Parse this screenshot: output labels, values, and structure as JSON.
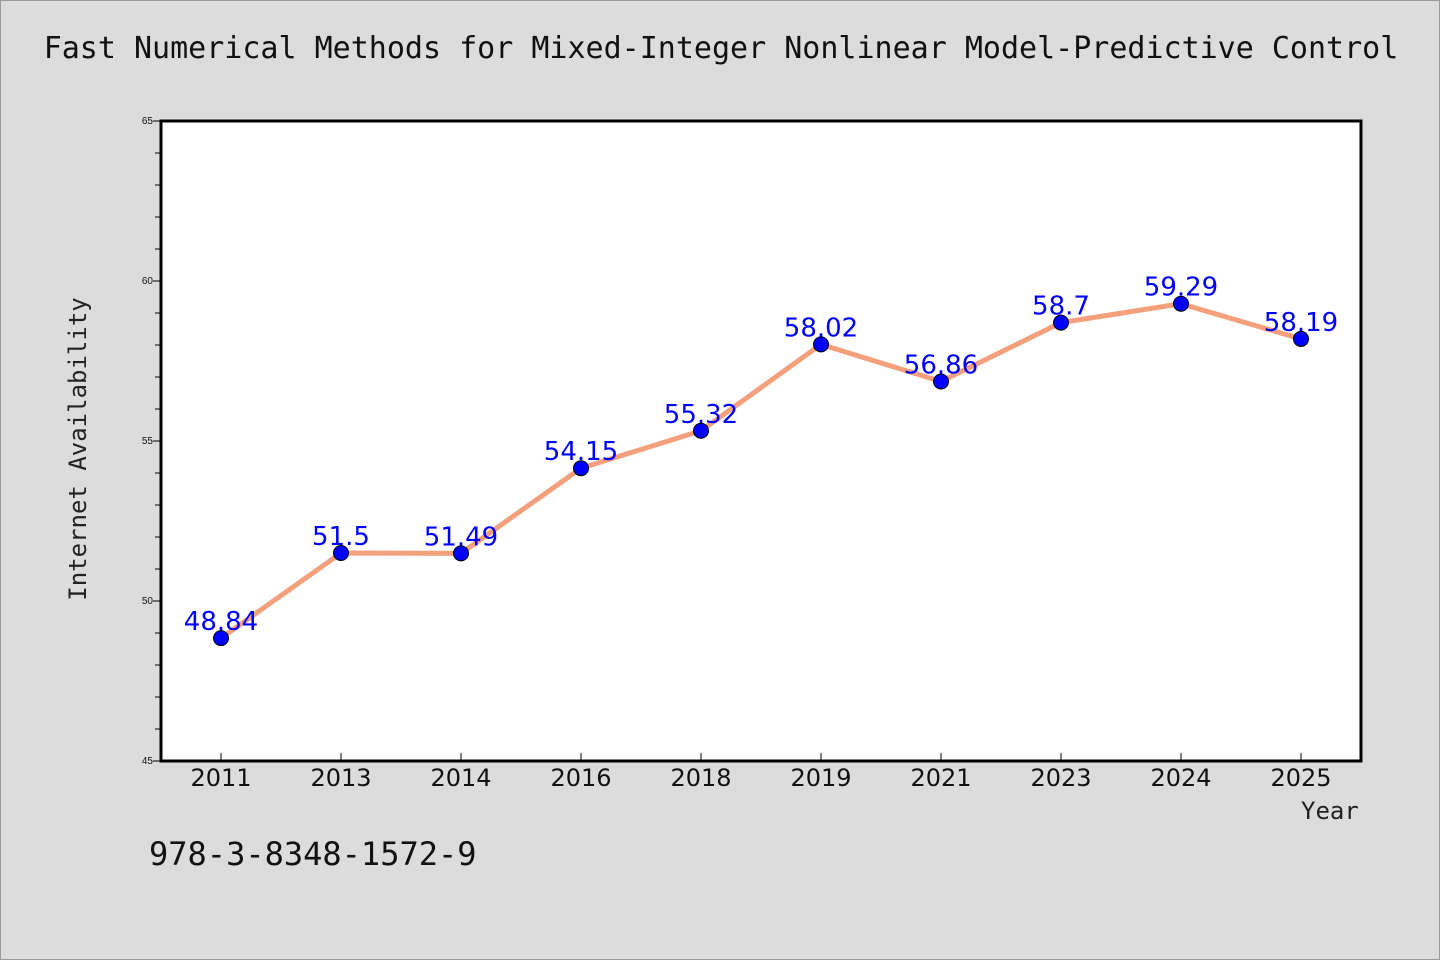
{
  "chart_data": {
    "type": "line",
    "title": "Fast Numerical Methods for Mixed-Integer Nonlinear Model-Predictive Control",
    "xlabel": "Year",
    "ylabel": "Internet Availability",
    "categories": [
      "2011",
      "2013",
      "2014",
      "2016",
      "2018",
      "2019",
      "2021",
      "2023",
      "2024",
      "2025"
    ],
    "values": [
      48.84,
      51.5,
      51.49,
      54.15,
      55.32,
      58.02,
      56.86,
      58.7,
      59.29,
      58.19
    ],
    "data_labels": [
      "48.84",
      "51.5",
      "51.49",
      "54.15",
      "55.32",
      "58.02",
      "56.86",
      "58.7",
      "59.29",
      "58.19"
    ],
    "ylim": [
      45,
      65
    ],
    "yticks": [
      "45",
      "50",
      "55",
      "60",
      "65"
    ],
    "grid": false,
    "legend": "none",
    "colors": {
      "line": "#f4a07c",
      "marker": "#0000ff",
      "label": "#0000ff",
      "background": "#dcdcdc",
      "plot_area": "#ffffff"
    }
  },
  "footer": {
    "code": "978-3-8348-1572-9"
  }
}
